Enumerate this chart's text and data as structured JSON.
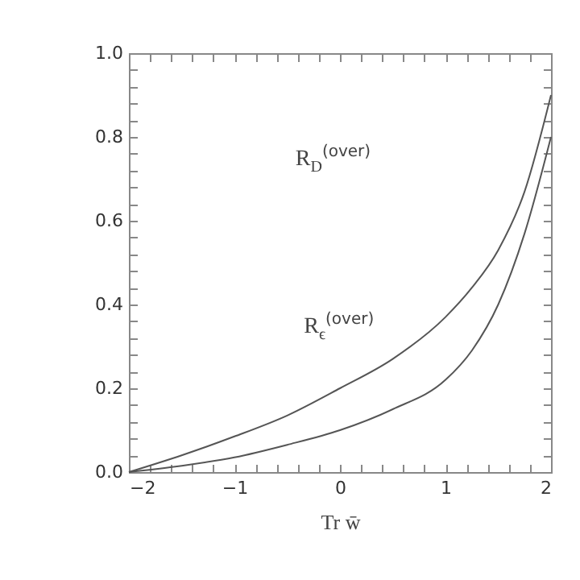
{
  "chart_data": {
    "type": "line",
    "xlabel": "Tr w̄",
    "x": [
      -2,
      -1.5,
      -1,
      -0.5,
      0,
      0.5,
      1,
      1.25,
      1.5,
      1.75,
      2
    ],
    "series": [
      {
        "color": "#555555",
        "values": [
          0,
          0.04,
          0.085,
          0.135,
          0.2,
          0.27,
          0.37,
          0.44,
          0.53,
          0.67,
          0.9
        ]
      },
      {
        "color": "#555555",
        "values": [
          0,
          0.015,
          0.035,
          0.065,
          0.1,
          0.15,
          0.22,
          0.29,
          0.4,
          0.57,
          0.8
        ]
      }
    ],
    "xlim": [
      -2,
      2
    ],
    "ylim": [
      0,
      1
    ],
    "xticks": [
      {
        "value": -2,
        "label": "−2"
      },
      {
        "value": -1.8,
        "label": null
      },
      {
        "value": -1.6,
        "label": null
      },
      {
        "value": -1.4,
        "label": null
      },
      {
        "value": -1.2,
        "label": null
      },
      {
        "value": -1,
        "label": "−1"
      },
      {
        "value": -0.8,
        "label": null
      },
      {
        "value": -0.6,
        "label": null
      },
      {
        "value": -0.4,
        "label": null
      },
      {
        "value": -0.2,
        "label": null
      },
      0,
      {
        "value": 0.2,
        "label": null
      },
      {
        "value": 0.4,
        "label": null
      },
      {
        "value": 0.6,
        "label": null
      },
      {
        "value": 0.8,
        "label": null
      },
      1,
      {
        "value": 1.2,
        "label": null
      },
      {
        "value": 1.4,
        "label": null
      },
      {
        "value": 1.6,
        "label": null
      },
      {
        "value": 1.8,
        "label": null
      },
      2
    ],
    "yticks": [
      {
        "value": 0,
        "label": "0.0"
      },
      {
        "value": 0.04,
        "label": null
      },
      {
        "value": 0.08,
        "label": null
      },
      {
        "value": 0.12,
        "label": null
      },
      {
        "value": 0.16,
        "label": null
      },
      0.2,
      {
        "value": 0.24,
        "label": null
      },
      {
        "value": 0.28,
        "label": null
      },
      {
        "value": 0.32,
        "label": null
      },
      {
        "value": 0.36,
        "label": null
      },
      0.4,
      {
        "value": 0.44,
        "label": null
      },
      {
        "value": 0.48,
        "label": null
      },
      {
        "value": 0.52,
        "label": null
      },
      {
        "value": 0.56,
        "label": null
      },
      0.6,
      {
        "value": 0.64,
        "label": null
      },
      {
        "value": 0.68,
        "label": null
      },
      {
        "value": 0.72,
        "label": null
      },
      {
        "value": 0.76,
        "label": null
      },
      0.8,
      {
        "value": 0.84,
        "label": null
      },
      {
        "value": 0.88,
        "label": null
      },
      {
        "value": 0.92,
        "label": null
      },
      {
        "value": 0.96,
        "label": null
      },
      {
        "value": 1,
        "label": "1.0"
      }
    ],
    "annotations": [
      "R$_{D}$$^{(over)}$",
      "R$_{ϵ}$$^{(over)}$"
    ],
    "grid": false,
    "legend": false,
    "marker": "none",
    "line_style": "solid"
  }
}
